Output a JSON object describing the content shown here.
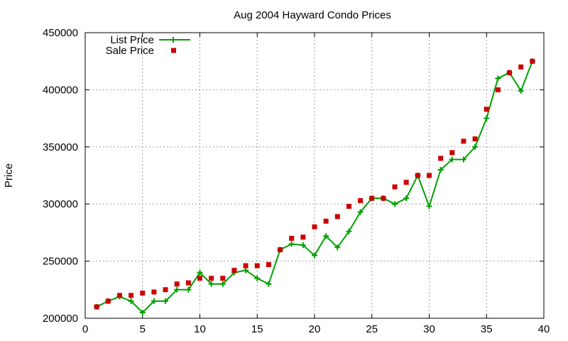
{
  "chart_data": {
    "type": "line",
    "title": "Aug 2004 Hayward Condo Prices",
    "xlabel": "",
    "ylabel": "Price",
    "xlim": [
      0,
      40
    ],
    "ylim": [
      200000,
      450000
    ],
    "x_ticks": [
      0,
      5,
      10,
      15,
      20,
      25,
      30,
      35,
      40
    ],
    "y_ticks": [
      200000,
      250000,
      300000,
      350000,
      400000,
      450000
    ],
    "grid": true,
    "legend_position": "top-left",
    "x": [
      1,
      2,
      3,
      4,
      5,
      6,
      7,
      8,
      9,
      10,
      11,
      12,
      13,
      14,
      15,
      16,
      17,
      18,
      19,
      20,
      21,
      22,
      23,
      24,
      25,
      26,
      27,
      28,
      29,
      30,
      31,
      32,
      33,
      34,
      35,
      36,
      37,
      38,
      39
    ],
    "series": [
      {
        "name": "List Price",
        "style": "linespoints",
        "marker": "plus",
        "color": "#00a000",
        "values": [
          210000,
          215000,
          219000,
          215000,
          205000,
          215000,
          215000,
          225000,
          225000,
          240000,
          230000,
          230000,
          240000,
          242000,
          235000,
          230000,
          260000,
          265000,
          264000,
          255000,
          272000,
          262000,
          276000,
          293000,
          305000,
          305000,
          300000,
          305000,
          325000,
          298000,
          330000,
          339000,
          339000,
          350000,
          375000,
          410000,
          415000,
          399000,
          425000
        ]
      },
      {
        "name": "Sale Price",
        "style": "points",
        "marker": "square",
        "color": "#cc0000",
        "values": [
          210000,
          215000,
          220000,
          220000,
          222000,
          223000,
          225000,
          230000,
          231000,
          235000,
          235000,
          235000,
          242000,
          246000,
          246000,
          247000,
          260000,
          270000,
          271000,
          280000,
          285000,
          289000,
          298000,
          303000,
          305000,
          305000,
          315000,
          319000,
          325000,
          325000,
          340000,
          345000,
          355000,
          357000,
          383000,
          400000,
          415000,
          420000,
          425000
        ]
      }
    ]
  }
}
